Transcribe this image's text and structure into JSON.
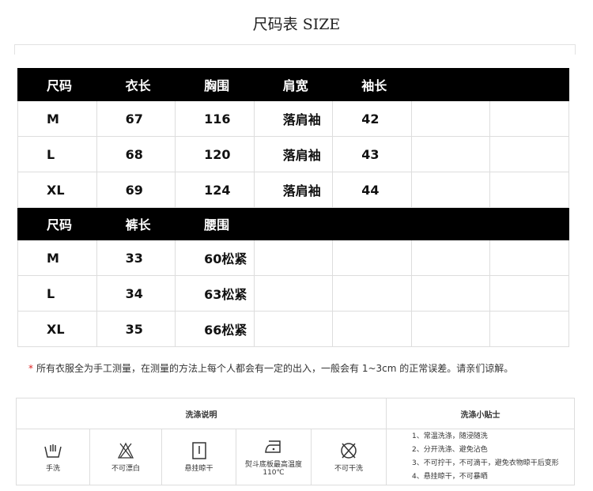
{
  "title": "尺码表 SIZE",
  "top_table": {
    "headers": [
      "尺码",
      "衣长",
      "胸围",
      "肩宽",
      "袖长",
      "",
      ""
    ],
    "rows": [
      [
        "M",
        "67",
        "116",
        "落肩袖",
        "42",
        "",
        ""
      ],
      [
        "L",
        "68",
        "120",
        "落肩袖",
        "43",
        "",
        ""
      ],
      [
        "XL",
        "69",
        "124",
        "落肩袖",
        "44",
        "",
        ""
      ]
    ]
  },
  "bottom_table": {
    "headers": [
      "尺码",
      "裤长",
      "腰围",
      "",
      "",
      "",
      ""
    ],
    "rows": [
      [
        "M",
        "33",
        "60松紧",
        "",
        "",
        "",
        ""
      ],
      [
        "L",
        "34",
        "63松紧",
        "",
        "",
        "",
        ""
      ],
      [
        "XL",
        "35",
        "66松紧",
        "",
        "",
        "",
        ""
      ]
    ]
  },
  "note": {
    "star": "*",
    "text": "所有衣服全为手工测量，在测量的方法上每个人都会有一定的出入，一般会有 1~3cm 的正常误差。请亲们谅解。"
  },
  "wash": {
    "title": "洗涤说明",
    "tips_title": "洗涤小贴士",
    "items": [
      {
        "icon": "hand-wash-icon",
        "label": "手洗"
      },
      {
        "icon": "no-bleach-icon",
        "label": "不可漂白"
      },
      {
        "icon": "hang-dry-icon",
        "label": "悬挂晾干"
      },
      {
        "icon": "iron-icon",
        "label": "熨斗底板最高温度110℃"
      },
      {
        "icon": "no-dry-clean-icon",
        "label": "不可干洗"
      }
    ],
    "tips": [
      "1、常温洗涤，随浸随洗",
      "2、分开洗涤、避免沾色",
      "3、不可拧干，不可滴干，避免衣物晾干后变形",
      "4、悬挂晾干，不可暴晒"
    ]
  }
}
